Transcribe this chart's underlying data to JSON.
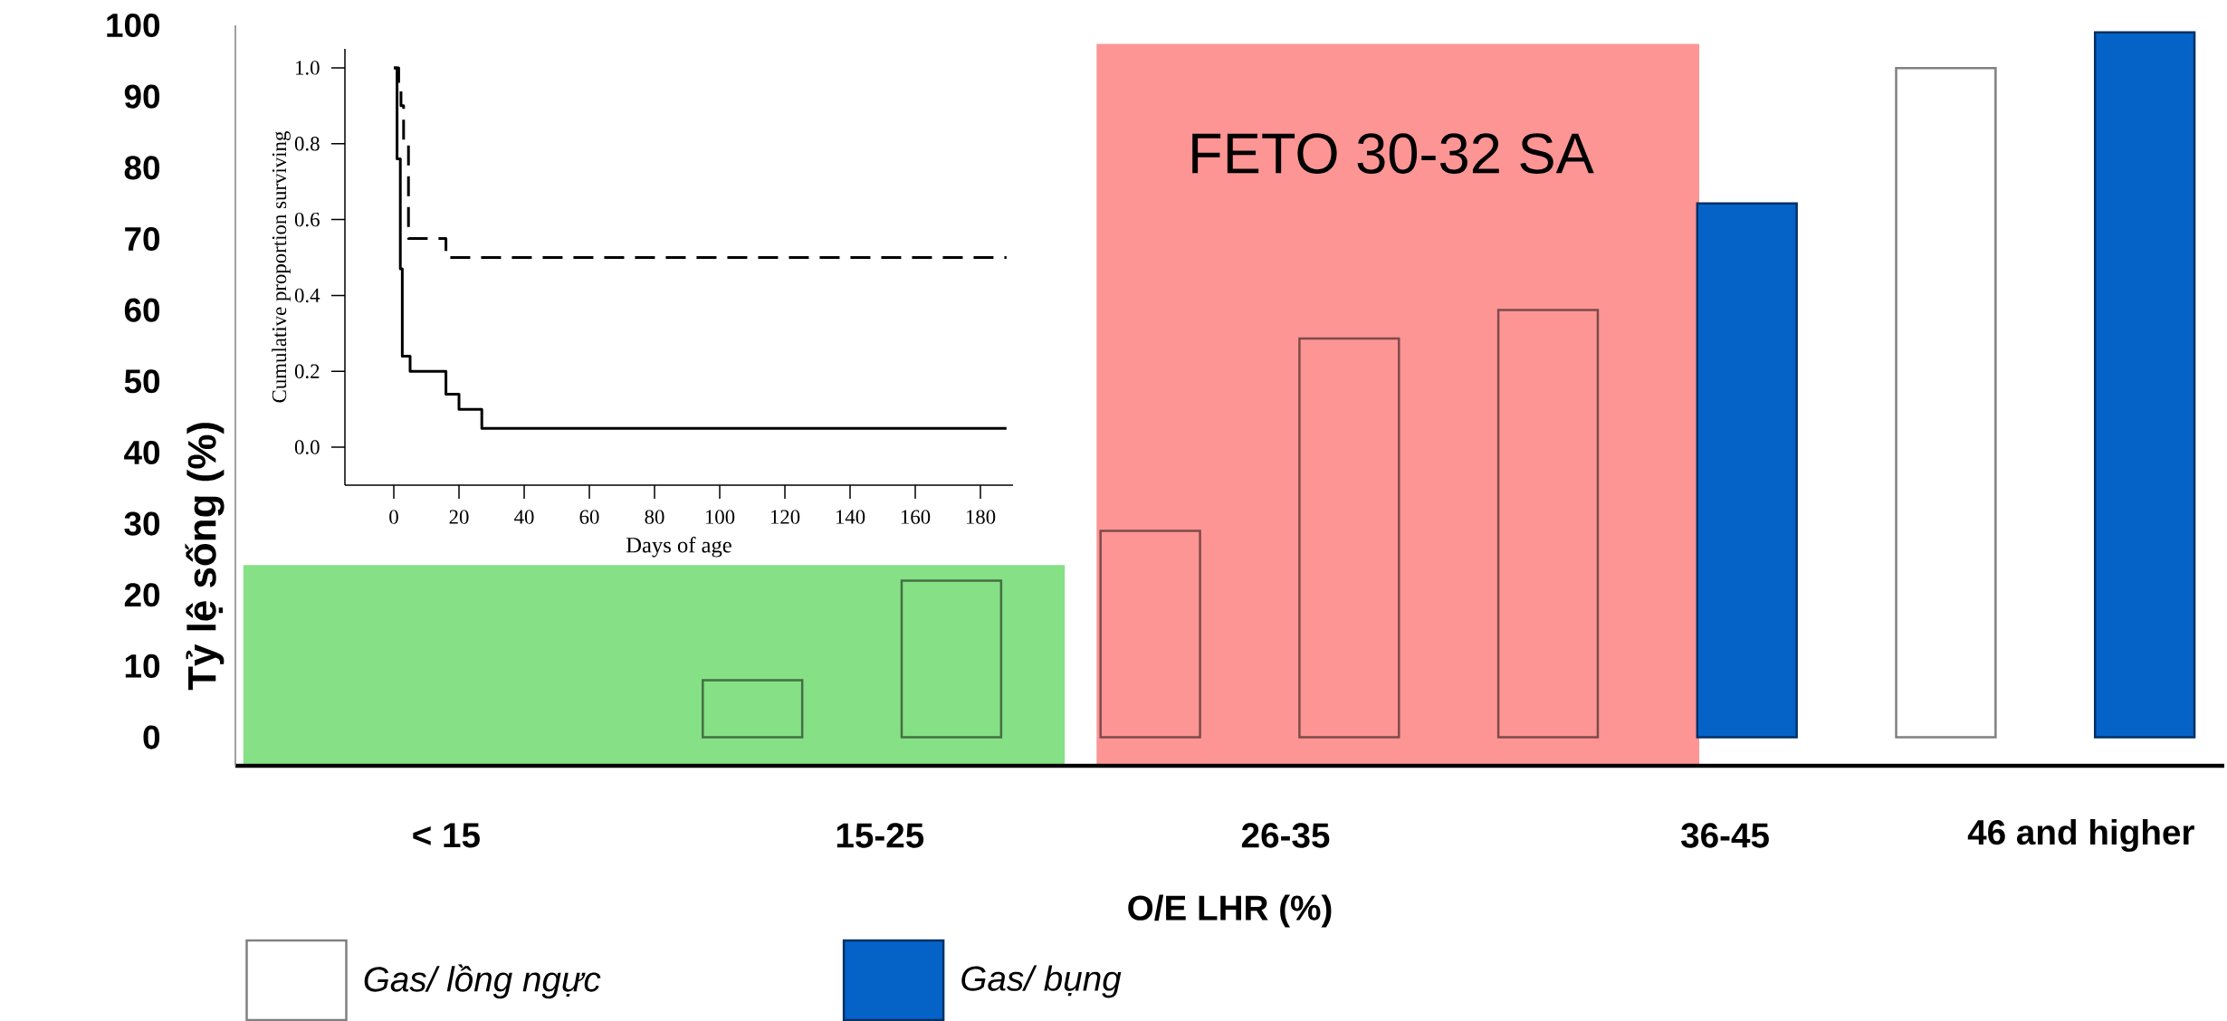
{
  "chart_data": [
    {
      "type": "bar",
      "xlabel": "O/E LHR (%)",
      "ylabel": "Tỷ lệ sống (%)",
      "ylim": [
        -4,
        100
      ],
      "categories": [
        null,
        null,
        null,
        null,
        null,
        null,
        null,
        null,
        null,
        null
      ],
      "yticks": [
        0,
        10,
        20,
        30,
        40,
        50,
        60,
        70,
        80,
        90,
        100
      ],
      "legend": "bottom",
      "annotations": [
        "< 15",
        "15-25",
        "26-35",
        "36-45",
        "46 and higher",
        "FETO 30-32 SA"
      ],
      "series": [
        {
          "name": "Gas/ lồng ngực",
          "color": "#ffffff",
          "values": [
            null,
            null,
            null,
            null,
            null,
            null,
            null,
            null,
            94,
            null
          ]
        },
        {
          "name": "Gas/ bụng",
          "color": "#0563c8",
          "values": [
            null,
            null,
            null,
            null,
            null,
            null,
            null,
            75,
            null,
            99
          ]
        },
        {
          "colors": [
            null,
            null,
            "#86e086",
            "#86e086",
            "#fd9595",
            "#fd9595",
            "#fd9595",
            null,
            null,
            null
          ],
          "values": [
            null,
            null,
            8,
            22,
            29,
            56,
            60,
            null,
            null,
            null
          ]
        }
      ]
    },
    {
      "type": "step",
      "xlabel": "Days of age",
      "ylabel": "Cumulative proportion surviving",
      "xlim": [
        -15,
        190
      ],
      "ylim": [
        -0.1,
        1.05
      ],
      "xticks": [
        0,
        20,
        40,
        60,
        80,
        100,
        120,
        140,
        160,
        180
      ],
      "yticks": [
        {
          "value": 0,
          "label": "0.0"
        },
        0.2,
        0.4,
        0.6,
        0.8,
        {
          "value": 1,
          "label": "1.0"
        }
      ],
      "series": [
        {
          "color": "#000000",
          "line_style": "solid",
          "x": [
            0,
            1,
            2,
            2.6,
            5,
            16,
            20,
            27,
            188
          ],
          "values": [
            1,
            0.76,
            0.47,
            0.24,
            0.2,
            0.14,
            0.1,
            0.05,
            0.05
          ]
        },
        {
          "color": "#000000",
          "line_style": "dashed",
          "x": [
            0,
            1.5,
            2.2,
            3,
            4.5,
            16,
            188
          ],
          "values": [
            1,
            0.95,
            0.9,
            0.8,
            0.55,
            0.5,
            0.5
          ]
        }
      ]
    }
  ]
}
